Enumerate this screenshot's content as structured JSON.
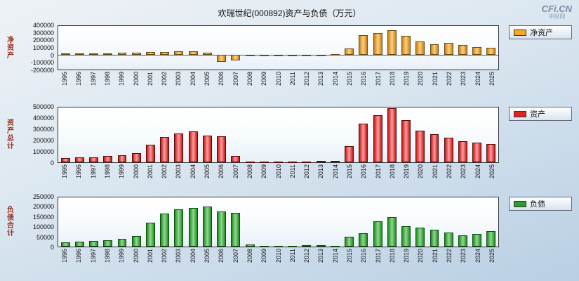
{
  "page": {
    "title": "欢瑞世纪(000892)资产与负债（万元）",
    "watermark_line1": "CFi.CN",
    "watermark_line2": "中财网"
  },
  "categories": [
    "1995",
    "1996",
    "1997",
    "1998",
    "1999",
    "2000",
    "2001",
    "2002",
    "2003",
    "2004",
    "2005",
    "2006",
    "2007",
    "2008",
    "2009",
    "2010",
    "2011",
    "2012",
    "2013",
    "2014",
    "2015",
    "2016",
    "2017",
    "2018",
    "2019",
    "2020",
    "2021",
    "2022",
    "2023",
    "2024",
    "2025"
  ],
  "chart_data": [
    {
      "id": "net-assets",
      "type": "bar",
      "axis_title": "净资产",
      "legend": "净资产",
      "ylim": [
        -200000,
        400000
      ],
      "yticks": [
        400000,
        300000,
        200000,
        100000,
        0,
        -100000,
        -200000
      ],
      "colors": {
        "base": "#f9a825",
        "light": "#ffd37d",
        "dark": "#c87f1a",
        "border": "#6b4a0e"
      },
      "values": [
        18000,
        20000,
        22000,
        26000,
        30000,
        34000,
        38000,
        42000,
        48000,
        50000,
        36000,
        -90000,
        -70000,
        -4000,
        2000,
        2500,
        3000,
        3500,
        4000,
        12000,
        95000,
        275000,
        300000,
        345000,
        265000,
        185000,
        150000,
        165000,
        135000,
        108000,
        98000
      ]
    },
    {
      "id": "total-assets",
      "type": "bar",
      "axis_title": "资产总计",
      "legend": "资产",
      "ylim": [
        0,
        500000
      ],
      "yticks": [
        500000,
        400000,
        300000,
        200000,
        100000,
        0
      ],
      "colors": {
        "base": "#e32222",
        "light": "#ff9e9e",
        "dark": "#c21616",
        "border": "#5f0a0a"
      },
      "values": [
        40000,
        42000,
        46000,
        56000,
        66000,
        86000,
        160000,
        230000,
        265000,
        280000,
        245000,
        235000,
        60000,
        8000,
        7000,
        7500,
        8000,
        9000,
        10000,
        15000,
        150000,
        355000,
        430000,
        495000,
        385000,
        290000,
        255000,
        225000,
        190000,
        180000,
        168000
      ]
    },
    {
      "id": "total-liabilities",
      "type": "bar",
      "axis_title": "负债合计",
      "legend": "负债",
      "ylim": [
        0,
        250000
      ],
      "yticks": [
        250000,
        200000,
        150000,
        100000,
        50000,
        0
      ],
      "colors": {
        "base": "#2d9e2d",
        "light": "#8fd98f",
        "dark": "#1f8a1f",
        "border": "#0c4d0c"
      },
      "values": [
        22000,
        24000,
        27000,
        32000,
        38000,
        52000,
        122000,
        168000,
        188000,
        196000,
        205000,
        178000,
        170000,
        12000,
        5000,
        5000,
        5000,
        5500,
        6000,
        5000,
        50000,
        68000,
        128000,
        150000,
        105000,
        95000,
        85000,
        72000,
        56000,
        66000,
        80000
      ]
    }
  ]
}
